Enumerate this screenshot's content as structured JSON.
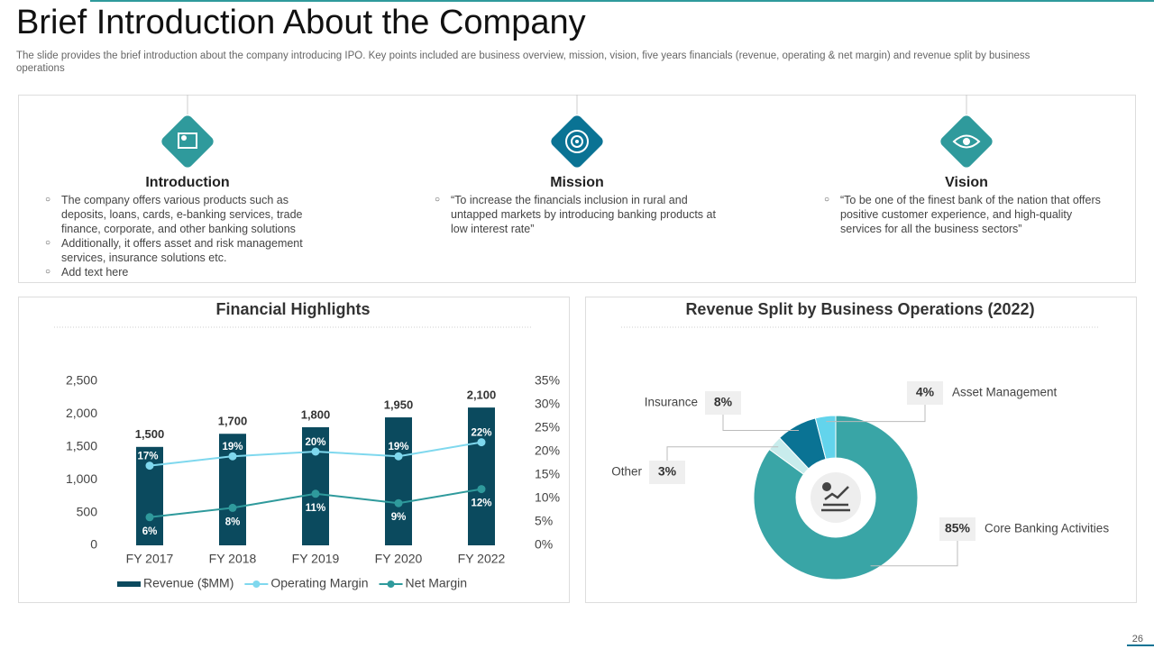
{
  "header": {
    "title": "Brief Introduction About the Company",
    "subtitle": "The slide provides the brief introduction about the company introducing IPO. Key points included are business overview, mission, vision, five years financials (revenue, operating & net margin) and revenue split by business operations"
  },
  "sections": [
    {
      "title": "Introduction",
      "bullets": [
        "The company offers various products such as deposits, loans, cards, e-banking services, trade finance, corporate, and other banking solutions",
        "Additionally, it offers asset and risk management services, insurance solutions etc.",
        "Add text here"
      ]
    },
    {
      "title": "Mission",
      "bullets": [
        "“To increase the financials inclusion in rural and untapped markets by introducing banking products at low interest rate”"
      ]
    },
    {
      "title": "Vision",
      "bullets": [
        "“To be one of the finest bank of the nation that offers positive customer experience, and high-quality services for all the business sectors”"
      ]
    }
  ],
  "chart_data": [
    {
      "type": "combo",
      "title": "Financial Highlights",
      "categories": [
        "FY 2017",
        "FY 2018",
        "FY 2019",
        "FY 2020",
        "FY 2022"
      ],
      "series": [
        {
          "name": "Revenue ($MM)",
          "type": "bar",
          "color": "#0b4a5e",
          "values": [
            1500,
            1700,
            1800,
            1950,
            2100
          ],
          "value_labels": [
            "1,500",
            "1,700",
            "1,800",
            "1,950",
            "2,100"
          ]
        },
        {
          "name": "Operating Margin",
          "type": "line",
          "axis": "y2",
          "color": "#7fd8ee",
          "values": [
            17,
            19,
            20,
            19,
            22
          ],
          "value_labels": [
            "17%",
            "19%",
            "20%",
            "19%",
            "22%"
          ]
        },
        {
          "name": "Net Margin",
          "type": "line",
          "axis": "y2",
          "color": "#2f9a9c",
          "values": [
            6,
            8,
            11,
            9,
            12
          ],
          "value_labels": [
            "6%",
            "8%",
            "11%",
            "9%",
            "12%"
          ]
        }
      ],
      "ylim": [
        0,
        2500
      ],
      "yticks": [
        0,
        500,
        {
          "value": 1000,
          "label": "1,000"
        },
        {
          "value": 1500,
          "label": "1,500"
        },
        {
          "value": 2000,
          "label": "2,000"
        },
        {
          "value": 2500,
          "label": "2,500"
        }
      ],
      "y2lim": [
        0,
        35
      ],
      "y2ticks": [
        {
          "value": 0,
          "label": "0%"
        },
        {
          "value": 5,
          "label": "5%"
        },
        {
          "value": 10,
          "label": "10%"
        },
        {
          "value": 15,
          "label": "15%"
        },
        {
          "value": 20,
          "label": "20%"
        },
        {
          "value": 25,
          "label": "25%"
        },
        {
          "value": 30,
          "label": "30%"
        },
        {
          "value": 35,
          "label": "35%"
        }
      ],
      "grid": false,
      "legend": "bottom"
    },
    {
      "type": "donut",
      "title": "Revenue Split by Business Operations (2022)",
      "categories": [
        "Core Banking Activities",
        "Other",
        "Insurance",
        "Asset Management"
      ],
      "values": [
        85,
        3,
        8,
        4
      ],
      "value_labels": [
        "85%",
        "3%",
        "8%",
        "4%"
      ],
      "colors": [
        "#39a5a6",
        "#c8ecec",
        "#0a7394",
        "#63d4ec"
      ]
    }
  ],
  "page_number": "26"
}
